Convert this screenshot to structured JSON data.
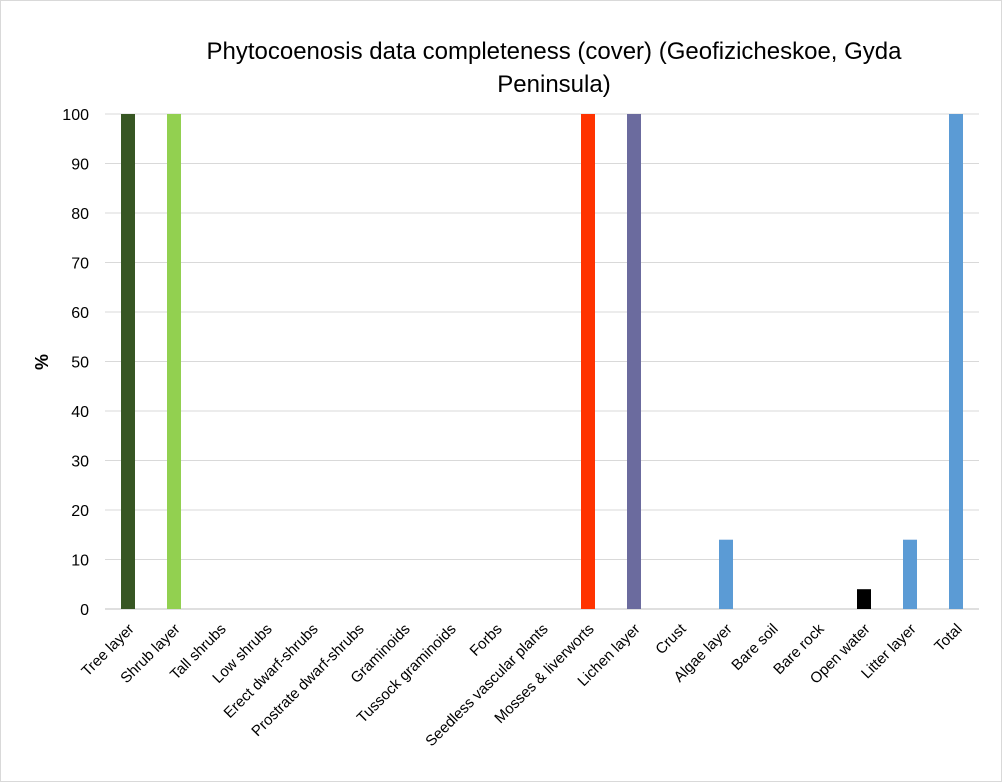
{
  "chart_data": {
    "type": "bar",
    "title_line1": "Phytocoenosis  data completeness  (cover)  (Geofizicheskoe,  Gyda",
    "title_line2": "Peninsula)",
    "xlabel": "",
    "ylabel": "%",
    "ylim": [
      0,
      100
    ],
    "yticks": [
      0,
      10,
      20,
      30,
      40,
      50,
      60,
      70,
      80,
      90,
      100
    ],
    "grid": true,
    "legend": "none",
    "categories": [
      "Tree layer",
      "Shrub layer",
      "Tall shrubs",
      "Low shrubs",
      "Erect dwarf-shrubs",
      "Prostrate dwarf-shrubs",
      "Graminoids",
      "Tussock graminoids",
      "Forbs",
      "Seedless vascular plants",
      "Mosses & liverworts",
      "Lichen layer",
      "Crust",
      "Algae layer",
      "Bare soil",
      "Bare rock",
      "Open water",
      "Litter layer",
      "Total"
    ],
    "values": [
      100,
      100,
      0,
      0,
      0,
      0,
      0,
      0,
      0,
      0,
      100,
      100,
      0,
      14,
      0,
      0,
      4,
      14,
      100
    ],
    "colors": [
      "#375623",
      "#92d050",
      "#5b9bd5",
      "#5b9bd5",
      "#5b9bd5",
      "#5b9bd5",
      "#5b9bd5",
      "#5b9bd5",
      "#5b9bd5",
      "#5b9bd5",
      "#ff3300",
      "#6b6b9e",
      "#5b9bd5",
      "#5b9bd5",
      "#5b9bd5",
      "#5b9bd5",
      "#000000",
      "#5b9bd5",
      "#5b9bd5"
    ]
  }
}
